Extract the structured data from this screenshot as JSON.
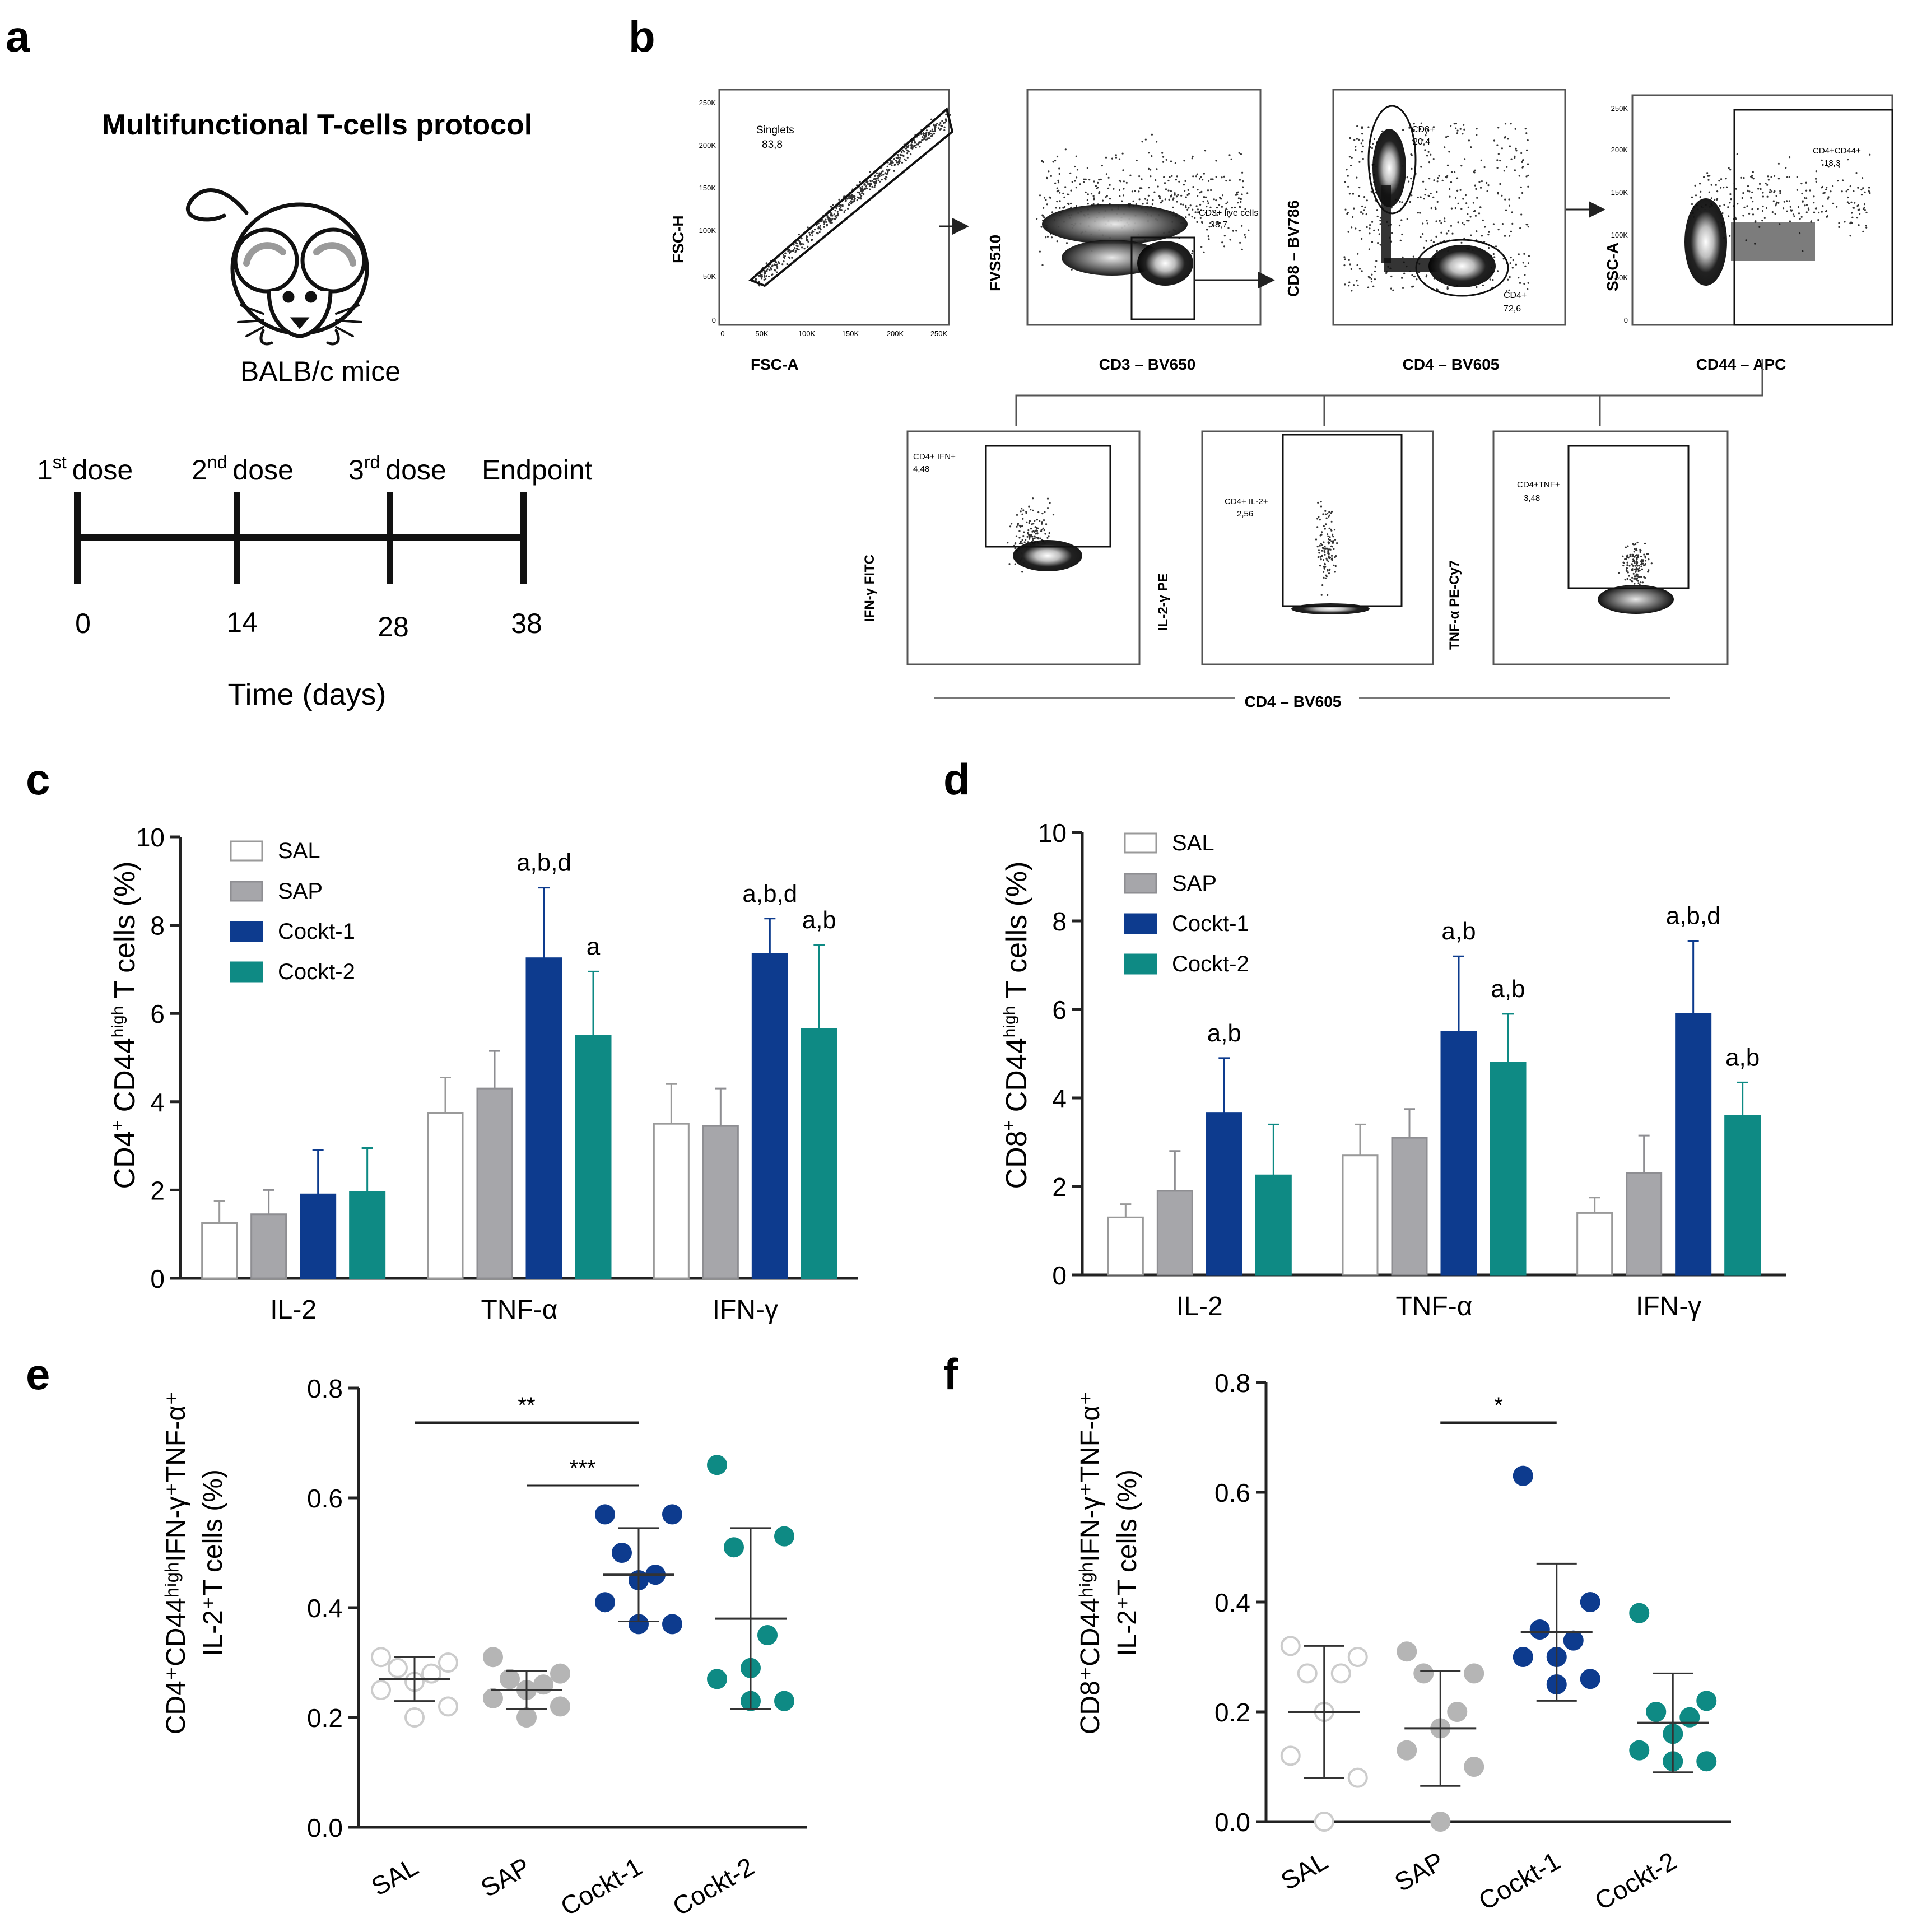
{
  "panel_labels": {
    "a": "a",
    "b": "b",
    "c": "c",
    "d": "d",
    "e": "e",
    "f": "f"
  },
  "colors": {
    "SAL": "#ffffff",
    "SAP": "#a6a6aa",
    "Cockt-1": "#0d3b8e",
    "Cockt-2": "#0e8a84",
    "SAL_edge": "#9a9a9a",
    "SAP_edge": "#8e8e92",
    "dot_sal": "#cccccc",
    "dot_sap": "#b5b5b5"
  },
  "panel_a": {
    "title": "Multifunctional T-cells protocol",
    "mouse_label": "BALB/c mice",
    "dose1": "1",
    "dose1_sup": "st",
    "dose1_word": "dose",
    "dose2": "2",
    "dose2_sup": "nd",
    "dose2_word": "dose",
    "dose3": "3",
    "dose3_sup": "rd",
    "dose3_word": "dose",
    "endpoint": "Endpoint",
    "days": [
      "0",
      "14",
      "28",
      "38"
    ],
    "axis_label": "Time (days)"
  },
  "panel_b": {
    "p1": {
      "x": "FSC-A",
      "y": "FSC-H",
      "gate_name": "Singlets",
      "gate_val": "83,8",
      "yticks": [
        "250K",
        "200K",
        "150K",
        "100K",
        "50K",
        "0"
      ],
      "xticks": [
        "0",
        "50K",
        "100K",
        "150K",
        "200K",
        "250K"
      ]
    },
    "p2": {
      "x": "CD3 – BV650",
      "y": "FVS510",
      "gate_name": "CD3+ live cells",
      "gate_val": "38,7"
    },
    "p3": {
      "x": "CD4 – BV605",
      "y": "CD8 – BV786",
      "gate1_name": "CD8+",
      "gate1_val": "20,4",
      "gate2_name": "CD4+",
      "gate2_val": "72,6"
    },
    "p4": {
      "x": "CD44 – APC",
      "y": "SSC-A",
      "gate_name": "CD4+CD44+",
      "gate_val": "18,3",
      "yticks": [
        "250K",
        "200K",
        "150K",
        "100K",
        "50K",
        "0"
      ]
    },
    "p5": {
      "y": "IFN-γ FITC",
      "gate_name": "CD4+ IFN+",
      "gate_val": "4,48"
    },
    "p6": {
      "y": "IL-2-γ PE",
      "gate_name": "CD4+ IL-2+",
      "gate_val": "2,56"
    },
    "p7": {
      "y": "TNF-α PE-Cy7",
      "gate_name": "CD4+TNF+",
      "gate_val": "3,48"
    },
    "shared_x": "CD4 – BV605"
  },
  "chart_data": [
    {
      "panel": "c",
      "type": "bar",
      "ylabel_pre": "CD4",
      "ylabel_sup1": "+",
      "ylabel_mid": " CD44",
      "ylabel_sup2": "high",
      "ylabel_post": " T cells (%)",
      "ylim": [
        0,
        10
      ],
      "yticks": [
        "0",
        "2",
        "4",
        "6",
        "8",
        "10"
      ],
      "categories": [
        "IL-2",
        "TNF-α",
        "IFN-γ"
      ],
      "legend": [
        "SAL",
        "SAP",
        "Cockt-1",
        "Cockt-2"
      ],
      "series": [
        {
          "name": "SAL",
          "values": [
            1.25,
            3.75,
            3.5
          ],
          "err": [
            0.5,
            0.8,
            0.9
          ]
        },
        {
          "name": "SAP",
          "values": [
            1.45,
            4.3,
            3.45
          ],
          "err": [
            0.55,
            0.85,
            0.85
          ]
        },
        {
          "name": "Cockt-1",
          "values": [
            1.9,
            7.25,
            7.35
          ],
          "err": [
            1.0,
            1.6,
            0.8
          ]
        },
        {
          "name": "Cockt-2",
          "values": [
            1.95,
            5.5,
            5.65
          ],
          "err": [
            1.0,
            1.45,
            1.9
          ]
        }
      ],
      "annotations": [
        {
          "category": "TNF-α",
          "series": "Cockt-1",
          "text": "a,b,d"
        },
        {
          "category": "TNF-α",
          "series": "Cockt-2",
          "text": "a"
        },
        {
          "category": "IFN-γ",
          "series": "Cockt-1",
          "text": "a,b,d"
        },
        {
          "category": "IFN-γ",
          "series": "Cockt-2",
          "text": "a,b"
        }
      ]
    },
    {
      "panel": "d",
      "type": "bar",
      "ylabel_pre": "CD8",
      "ylabel_sup1": "+",
      "ylabel_mid": " CD44",
      "ylabel_sup2": "high",
      "ylabel_post": " T cells (%)",
      "ylim": [
        0,
        10
      ],
      "yticks": [
        "0",
        "2",
        "4",
        "6",
        "8",
        "10"
      ],
      "categories": [
        "IL-2",
        "TNF-α",
        "IFN-γ"
      ],
      "legend": [
        "SAL",
        "SAP",
        "Cockt-1",
        "Cockt-2"
      ],
      "series": [
        {
          "name": "SAL",
          "values": [
            1.3,
            2.7,
            1.4
          ],
          "err": [
            0.3,
            0.7,
            0.35
          ]
        },
        {
          "name": "SAP",
          "values": [
            1.9,
            3.1,
            2.3
          ],
          "err": [
            0.9,
            0.65,
            0.85
          ]
        },
        {
          "name": "Cockt-1",
          "values": [
            3.65,
            5.5,
            5.9
          ],
          "err": [
            1.25,
            1.7,
            1.65
          ]
        },
        {
          "name": "Cockt-2",
          "values": [
            2.25,
            4.8,
            3.6
          ],
          "err": [
            1.15,
            1.1,
            0.75
          ]
        }
      ],
      "annotations": [
        {
          "category": "IL-2",
          "series": "Cockt-1",
          "text": "a,b"
        },
        {
          "category": "TNF-α",
          "series": "Cockt-1",
          "text": "a,b"
        },
        {
          "category": "TNF-α",
          "series": "Cockt-2",
          "text": "a,b"
        },
        {
          "category": "IFN-γ",
          "series": "Cockt-1",
          "text": "a,b,d"
        },
        {
          "category": "IFN-γ",
          "series": "Cockt-2",
          "text": "a,b"
        }
      ]
    },
    {
      "panel": "e",
      "type": "scatter",
      "ylabel_line1": "CD4⁺CD44ʰⁱᵍʰIFN-γ⁺TNF-α⁺",
      "ylabel_line2": "IL-2⁺T cells (%)",
      "ylim": [
        0,
        0.8
      ],
      "yticks": [
        "0.0",
        "0.2",
        "0.4",
        "0.6",
        "0.8"
      ],
      "categories": [
        "SAL",
        "SAP",
        "Cockt-1",
        "Cockt-2"
      ],
      "groups": [
        {
          "name": "SAL",
          "points": [
            0.31,
            0.3,
            0.29,
            0.28,
            0.265,
            0.25,
            0.22,
            0.2
          ],
          "mean": 0.27,
          "sd": 0.04
        },
        {
          "name": "SAP",
          "points": [
            0.31,
            0.28,
            0.27,
            0.26,
            0.25,
            0.235,
            0.22,
            0.2
          ],
          "mean": 0.25,
          "sd": 0.035
        },
        {
          "name": "Cockt-1",
          "points": [
            0.57,
            0.57,
            0.5,
            0.46,
            0.45,
            0.41,
            0.37,
            0.37
          ],
          "mean": 0.46,
          "sd": 0.085
        },
        {
          "name": "Cockt-2",
          "points": [
            0.66,
            0.53,
            0.51,
            0.35,
            0.29,
            0.27,
            0.23,
            0.23
          ],
          "mean": 0.38,
          "sd": 0.165
        }
      ],
      "significance": [
        {
          "from": "SAL",
          "to": "Cockt-1",
          "label": "**"
        },
        {
          "from": "SAP",
          "to": "Cockt-1",
          "label": "***"
        }
      ]
    },
    {
      "panel": "f",
      "type": "scatter",
      "ylabel_line1": "CD8⁺CD44ʰⁱᵍʰIFN-γ⁺TNF-α⁺",
      "ylabel_line2": "IL-2⁺T cells (%)",
      "ylim": [
        0,
        0.8
      ],
      "yticks": [
        "0.0",
        "0.2",
        "0.4",
        "0.6",
        "0.8"
      ],
      "categories": [
        "SAL",
        "SAP",
        "Cockt-1",
        "Cockt-2"
      ],
      "groups": [
        {
          "name": "SAL",
          "points": [
            0.32,
            0.3,
            0.27,
            0.27,
            0.2,
            0.12,
            0.08,
            0.0
          ],
          "mean": 0.2,
          "sd": 0.12
        },
        {
          "name": "SAP",
          "points": [
            0.31,
            0.27,
            0.27,
            0.2,
            0.17,
            0.13,
            0.1,
            0.0
          ],
          "mean": 0.17,
          "sd": 0.105
        },
        {
          "name": "Cockt-1",
          "points": [
            0.63,
            0.4,
            0.35,
            0.33,
            0.3,
            0.3,
            0.26,
            0.25
          ],
          "mean": 0.345,
          "sd": 0.125
        },
        {
          "name": "Cockt-2",
          "points": [
            0.38,
            0.22,
            0.2,
            0.19,
            0.16,
            0.13,
            0.11,
            0.11
          ],
          "mean": 0.18,
          "sd": 0.09
        }
      ],
      "significance": [
        {
          "from": "SAP",
          "to": "Cockt-1",
          "label": "*"
        }
      ]
    }
  ]
}
